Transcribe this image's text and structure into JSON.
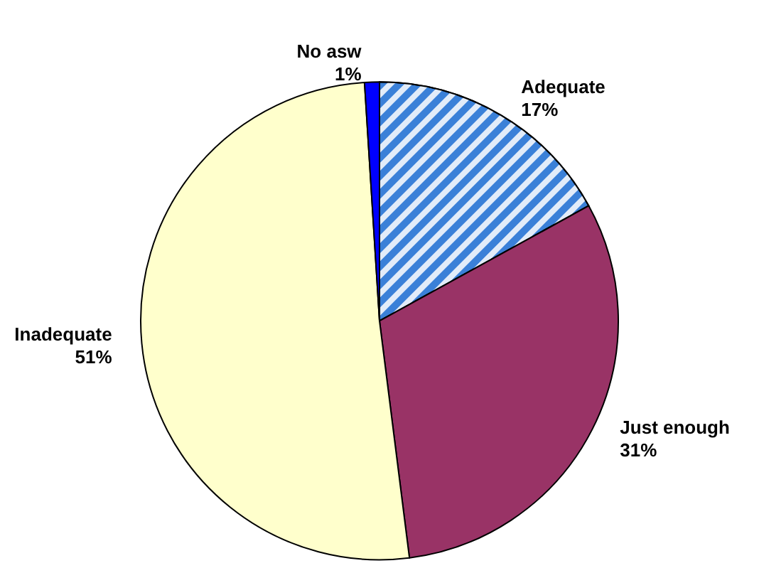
{
  "chart_data": {
    "type": "pie",
    "categories": [
      "Adequate",
      "Just enough",
      "Inadequate",
      "No asw"
    ],
    "values": [
      17,
      31,
      51,
      1
    ],
    "value_labels": [
      "17%",
      "31%",
      "51%",
      "1%"
    ],
    "colors": [
      "#3a80d8",
      "#993366",
      "#ffffcc",
      "#0000ff"
    ],
    "legend": false
  }
}
